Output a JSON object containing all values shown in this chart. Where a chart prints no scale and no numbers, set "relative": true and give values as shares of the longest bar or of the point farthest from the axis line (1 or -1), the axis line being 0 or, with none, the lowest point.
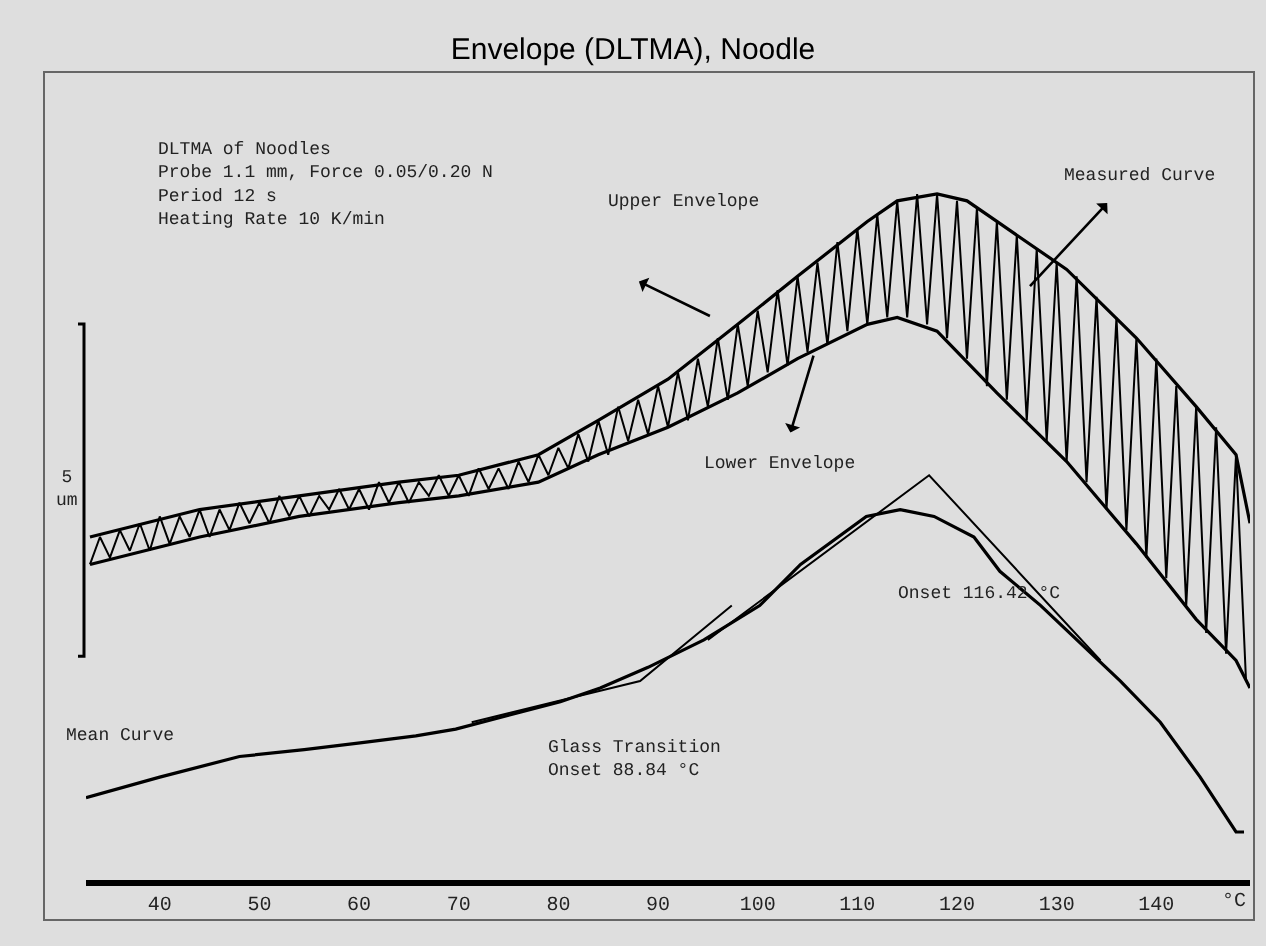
{
  "chart_data": {
    "type": "line",
    "title": "Envelope (DLTMA), Noodle",
    "xlabel": "°C",
    "relative": true,
    "xlim": [
      32.6,
      149.4
    ],
    "xticks": [
      40,
      50,
      60,
      70,
      80,
      90,
      100,
      110,
      120,
      130,
      140
    ],
    "grid": false,
    "marker": "none",
    "line_style": "solid",
    "annotations": [
      "DLTMA of Noodles\nProbe 1.1 mm, Force 0.05/0.20 N\nPeriod 12 s\nHeating Rate 10 K/min",
      "Upper Envelope",
      "Lower Envelope",
      "Measured Curve",
      "Onset 116.42 °C",
      "Mean Curve",
      "Glass Transition\nOnset 88.84 °C",
      "5\num"
    ],
    "series": [
      {
        "color": "#000000",
        "x": [
          33,
          34,
          35,
          36,
          37,
          38,
          39,
          40,
          41,
          42,
          43,
          44,
          45,
          46,
          47,
          48,
          49,
          50,
          51,
          52,
          53,
          54,
          55,
          56,
          57,
          58,
          59,
          60,
          61,
          62,
          63,
          64,
          65,
          66,
          67,
          68,
          69,
          70,
          71,
          72,
          73,
          74,
          75,
          76,
          77,
          78,
          79,
          80,
          81,
          82,
          83,
          84,
          85,
          86,
          87,
          88,
          89,
          90,
          91,
          92,
          93,
          94,
          95,
          96,
          97,
          98,
          99,
          100,
          101,
          102,
          103,
          104,
          105,
          106,
          107,
          108,
          109,
          110,
          111,
          112,
          113,
          114,
          115,
          116,
          117,
          118,
          119,
          120,
          121,
          122,
          123,
          124,
          125,
          126,
          127,
          128,
          129,
          130,
          131,
          132,
          133,
          134,
          135,
          136,
          137,
          138,
          139,
          140,
          141,
          142,
          143,
          144,
          145,
          146,
          147,
          148,
          149
        ],
        "values": [
          0.46,
          0.5,
          0.47,
          0.51,
          0.48,
          0.52,
          0.48,
          0.53,
          0.49,
          0.53,
          0.5,
          0.54,
          0.5,
          0.54,
          0.51,
          0.55,
          0.52,
          0.55,
          0.52,
          0.56,
          0.53,
          0.56,
          0.53,
          0.56,
          0.54,
          0.57,
          0.54,
          0.57,
          0.54,
          0.58,
          0.55,
          0.58,
          0.55,
          0.58,
          0.56,
          0.59,
          0.56,
          0.59,
          0.56,
          0.6,
          0.57,
          0.6,
          0.57,
          0.61,
          0.58,
          0.62,
          0.59,
          0.63,
          0.6,
          0.65,
          0.61,
          0.67,
          0.62,
          0.69,
          0.64,
          0.7,
          0.65,
          0.72,
          0.66,
          0.74,
          0.67,
          0.76,
          0.69,
          0.79,
          0.7,
          0.81,
          0.72,
          0.83,
          0.74,
          0.86,
          0.75,
          0.88,
          0.77,
          0.9,
          0.78,
          0.93,
          0.8,
          0.95,
          0.81,
          0.97,
          0.82,
          0.99,
          0.82,
          1.0,
          0.81,
          1.0,
          0.79,
          0.99,
          0.76,
          0.98,
          0.72,
          0.96,
          0.7,
          0.94,
          0.67,
          0.92,
          0.64,
          0.9,
          0.61,
          0.88,
          0.58,
          0.85,
          0.54,
          0.82,
          0.51,
          0.79,
          0.47,
          0.76,
          0.44,
          0.72,
          0.4,
          0.69,
          0.36,
          0.66,
          0.33,
          0.62,
          0.29
        ]
      },
      {
        "color": "#000000",
        "x": [
          33,
          44,
          54,
          64,
          70,
          78,
          84,
          91,
          98,
          104,
          111,
          114,
          118,
          121,
          124,
          131,
          138,
          144,
          148,
          149.4
        ],
        "values": [
          0.5,
          0.54,
          0.56,
          0.58,
          0.59,
          0.62,
          0.67,
          0.73,
          0.81,
          0.88,
          0.96,
          0.99,
          1.0,
          0.99,
          0.96,
          0.89,
          0.79,
          0.69,
          0.62,
          0.52
        ]
      },
      {
        "color": "#000000",
        "x": [
          33,
          44,
          54,
          64,
          70,
          78,
          84,
          91,
          98,
          104,
          111,
          114,
          118,
          124,
          131,
          138,
          144,
          148,
          149.4
        ],
        "values": [
          0.46,
          0.5,
          0.53,
          0.55,
          0.56,
          0.58,
          0.62,
          0.66,
          0.71,
          0.76,
          0.81,
          0.82,
          0.8,
          0.71,
          0.61,
          0.49,
          0.38,
          0.32,
          0.28
        ]
      },
      {
        "color": "#000000",
        "x": [
          32.6,
          40,
          48,
          54.5,
          60.1,
          65.7,
          69.7,
          80.2,
          84.2,
          89.0,
          94.6,
          100.2,
          104.3,
          110.9,
          114.3,
          117.7,
          121.7,
          124.3,
          128.4,
          136.4,
          140.4,
          144.4,
          148.0,
          148.8
        ],
        "values": [
          0.12,
          0.15,
          0.18,
          0.19,
          0.2,
          0.21,
          0.22,
          0.26,
          0.28,
          0.31,
          0.35,
          0.4,
          0.46,
          0.53,
          0.54,
          0.53,
          0.5,
          0.45,
          0.4,
          0.29,
          0.23,
          0.15,
          0.07,
          0.07
        ]
      },
      {
        "color": "#000000",
        "x": [
          71.3,
          88.2,
          97.4
        ],
        "values": [
          0.23,
          0.29,
          0.4
        ]
      },
      {
        "color": "#000000",
        "x": [
          95.0,
          117.2,
          134.4
        ],
        "values": [
          0.35,
          0.59,
          0.32
        ]
      }
    ]
  }
}
